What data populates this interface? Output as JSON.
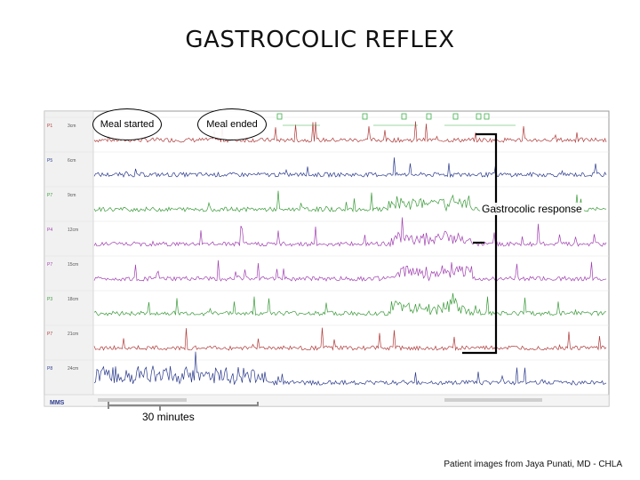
{
  "slide": {
    "title": "GASTROCOLIC REFLEX",
    "credit": "Patient images from Jaya Punati, MD - CHLA"
  },
  "annotations": {
    "meal_started": "Meal started",
    "meal_ended": "Meal ended",
    "gastrocolic_response": "Gastrocolic response",
    "time_scale": "30 minutes"
  },
  "tracing": {
    "app_logo": "MMS",
    "channels": [
      {
        "id": "P1",
        "depth": "3cm",
        "color": "#b03a3a"
      },
      {
        "id": "P5",
        "depth": "6cm",
        "color": "#2b3a8c"
      },
      {
        "id": "P7",
        "depth": "9cm",
        "color": "#3a9a3a"
      },
      {
        "id": "P4",
        "depth": "12cm",
        "color": "#a040b0"
      },
      {
        "id": "P7",
        "depth": "15cm",
        "color": "#a040b0"
      },
      {
        "id": "P3",
        "depth": "18cm",
        "color": "#3a9a3a"
      },
      {
        "id": "P7",
        "depth": "21cm",
        "color": "#b03a3a"
      },
      {
        "id": "P8",
        "depth": "24cm",
        "color": "#2b3a8c"
      }
    ],
    "colors": {
      "frame": "#9a9a9a",
      "event_marker": "#3cb04a",
      "bracket": "#000000"
    }
  }
}
